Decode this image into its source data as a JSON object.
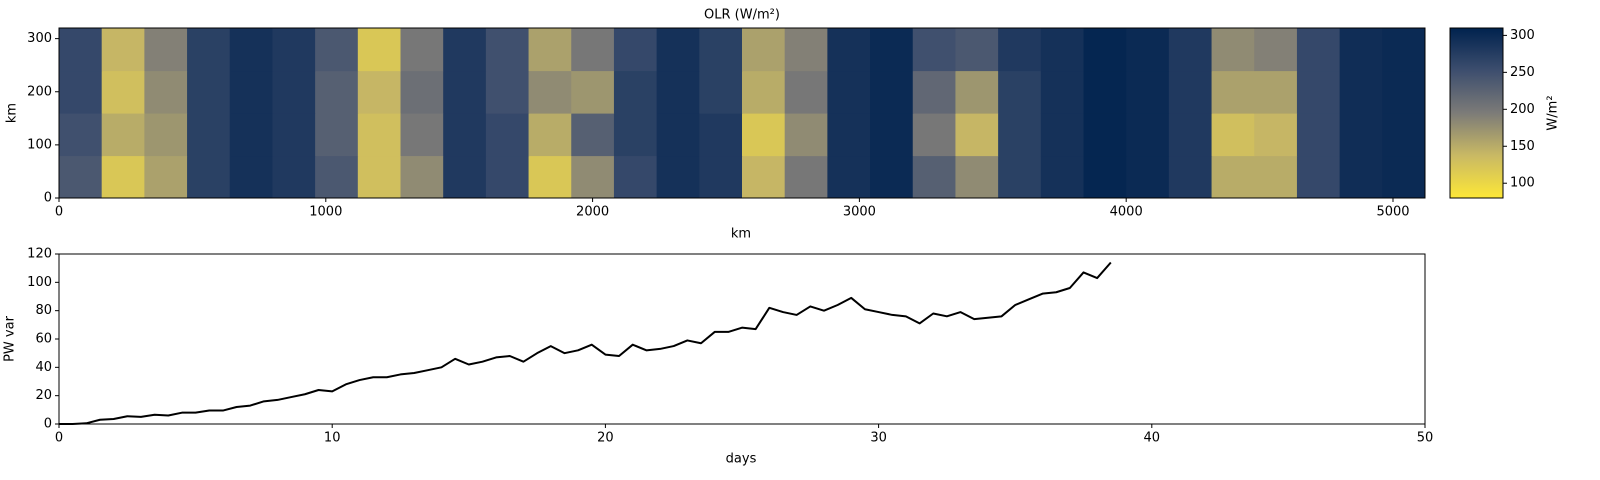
{
  "chart_data": [
    {
      "type": "heatmap",
      "title": "OLR (W/m²)",
      "xlabel": "km",
      "ylabel": "km",
      "colorbar_label": "W/m²",
      "xlim": [
        0,
        5120
      ],
      "ylim": [
        0,
        320
      ],
      "xticks": [
        0,
        1000,
        2000,
        3000,
        4000,
        5000
      ],
      "yticks": [
        0,
        100,
        200,
        300
      ],
      "clim": [
        80,
        310
      ],
      "cticks": [
        100,
        150,
        200,
        250,
        300
      ],
      "colormap": [
        "#fde737",
        "#c9b964",
        "#7c7b78",
        "#3d4e6e",
        "#00224e"
      ],
      "x": [
        80,
        240,
        400,
        560,
        720,
        880,
        1040,
        1200,
        1360,
        1520,
        1680,
        1840,
        2000,
        2160,
        2320,
        2480,
        2640,
        2800,
        2960,
        3120,
        3280,
        3440,
        3600,
        3760,
        3920,
        4080,
        4240,
        4400,
        4560,
        4720,
        4880,
        5040
      ],
      "y": [
        40,
        120,
        200,
        280
      ],
      "z": [
        [
          240,
          120,
          160,
          270,
          290,
          280,
          240,
          130,
          180,
          280,
          260,
          120,
          180,
          260,
          290,
          280,
          140,
          200,
          290,
          300,
          230,
          180,
          270,
          290,
          305,
          300,
          280,
          150,
          150,
          260,
          295,
          300
        ],
        [
          250,
          150,
          170,
          270,
          290,
          280,
          230,
          130,
          200,
          280,
          260,
          150,
          230,
          270,
          290,
          280,
          120,
          180,
          290,
          300,
          200,
          140,
          270,
          290,
          305,
          300,
          280,
          130,
          140,
          260,
          295,
          300
        ],
        [
          260,
          130,
          180,
          270,
          290,
          280,
          230,
          140,
          210,
          280,
          250,
          180,
          170,
          270,
          290,
          270,
          150,
          200,
          290,
          300,
          220,
          170,
          270,
          290,
          305,
          300,
          280,
          160,
          160,
          260,
          295,
          300
        ],
        [
          260,
          140,
          190,
          270,
          290,
          280,
          240,
          120,
          200,
          280,
          250,
          160,
          200,
          260,
          290,
          270,
          160,
          190,
          290,
          300,
          250,
          240,
          280,
          290,
          305,
          300,
          280,
          180,
          190,
          260,
          295,
          300
        ]
      ]
    },
    {
      "type": "line",
      "xlabel": "days",
      "ylabel": "PW var",
      "color": "#000000",
      "xlim": [
        0,
        50
      ],
      "ylim": [
        0,
        120
      ],
      "xticks": [
        0,
        10,
        20,
        30,
        40,
        50
      ],
      "yticks": [
        0,
        20,
        40,
        60,
        80,
        100,
        120
      ],
      "x": [
        0,
        0.5,
        1,
        1.5,
        2,
        2.5,
        3,
        3.5,
        4,
        4.5,
        5,
        5.5,
        6,
        6.5,
        7,
        7.5,
        8,
        8.5,
        9,
        9.5,
        10,
        10.5,
        11,
        11.5,
        12,
        12.5,
        13,
        13.5,
        14,
        14.5,
        15,
        15.5,
        16,
        16.5,
        17,
        17.5,
        18,
        18.5,
        19,
        19.5,
        20,
        20.5,
        21,
        21.5,
        22,
        22.5,
        23,
        23.5,
        24,
        24.5,
        25,
        25.5,
        26,
        26.5,
        27,
        27.5,
        28,
        28.5,
        29,
        29.5,
        30,
        30.5,
        31,
        31.5,
        32,
        32.5,
        33,
        33.5,
        34,
        34.5,
        35,
        35.5,
        36,
        36.5,
        37,
        37.5,
        38,
        38.5
      ],
      "values": [
        0,
        0,
        0.5,
        3,
        3.5,
        5.5,
        5,
        6.5,
        6,
        8,
        8,
        9.5,
        9.5,
        12,
        13,
        16,
        17,
        19,
        21,
        24,
        23,
        28,
        31,
        33,
        33,
        35,
        36,
        38,
        40,
        46,
        42,
        44,
        47,
        48,
        44,
        50,
        55,
        50,
        52,
        56,
        49,
        48,
        56,
        52,
        53,
        55,
        59,
        57,
        65,
        65,
        68,
        67,
        82,
        79,
        77,
        83,
        80,
        84,
        89,
        81,
        79,
        77,
        76,
        71,
        78,
        76,
        79,
        74,
        75,
        76,
        84,
        88,
        92,
        93,
        96,
        107,
        103,
        114
      ]
    }
  ]
}
